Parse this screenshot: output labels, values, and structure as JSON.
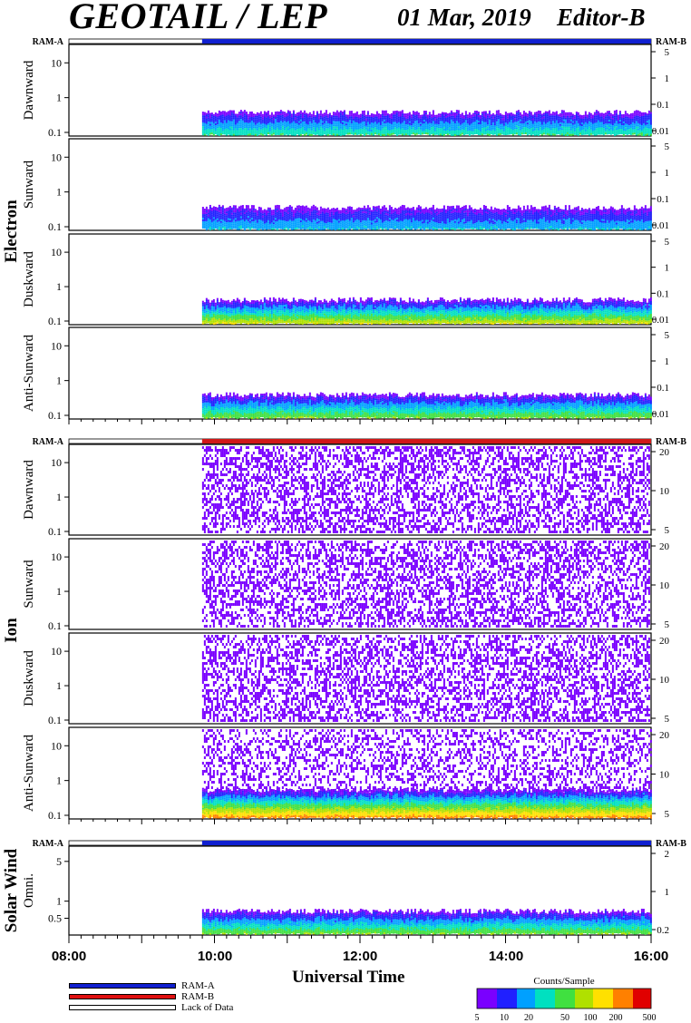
{
  "header": {
    "title": "GEOTAIL / LEP",
    "date": "01 Mar, 2019",
    "editor": "Editor-B"
  },
  "status_labels": {
    "left": "RAM-A",
    "right": "RAM-B"
  },
  "x_axis": {
    "title": "Universal Time",
    "ticks": [
      "08:00",
      "10:00",
      "12:00",
      "14:00",
      "16:00"
    ],
    "range_hours": [
      8,
      16
    ]
  },
  "legend": {
    "ram_a": {
      "label": "RAM-A",
      "color": "#1020d0"
    },
    "ram_b": {
      "label": "RAM-B",
      "color": "#e01010"
    },
    "lack": {
      "label": "Lack of Data",
      "color": "#ffffff"
    }
  },
  "colorbar": {
    "title": "Counts/Sample",
    "ticks": [
      "5",
      "10",
      "20",
      "50",
      "100",
      "200",
      "500"
    ]
  },
  "chart_data": [
    {
      "type": "heatmap",
      "group": "Electron",
      "status_color": "#1020d0",
      "data_start_hour": 9.83,
      "panels": [
        {
          "label": "Dawnward",
          "yticks_left": [
            "10",
            "1",
            "0.1"
          ],
          "yticks_right": [
            "5",
            "1",
            "0.1",
            "0.01"
          ],
          "base_level": 0.35,
          "top_level": 0.45
        },
        {
          "label": "Sunward",
          "yticks_left": [
            "10",
            "1",
            "0.1"
          ],
          "yticks_right": [
            "5",
            "1",
            "0.1",
            "0.01"
          ],
          "base_level": 0.25,
          "top_level": 0.4
        },
        {
          "label": "Duskward",
          "yticks_left": [
            "10",
            "1",
            "0.1"
          ],
          "yticks_right": [
            "5",
            "1",
            "0.1",
            "0.01"
          ],
          "base_level": 0.55,
          "top_level": 0.55
        },
        {
          "label": "Anti-Sunward",
          "yticks_left": [
            "10",
            "1",
            "0.1"
          ],
          "yticks_right": [
            "5",
            "1",
            "0.1",
            "0.01"
          ],
          "base_level": 0.45,
          "top_level": 0.5
        }
      ]
    },
    {
      "type": "heatmap",
      "group": "Ion",
      "status_color": "#d01818",
      "data_start_hour": 9.83,
      "panels": [
        {
          "label": "Dawnward",
          "yticks_left": [
            "10",
            "1",
            "0.1"
          ],
          "yticks_right": [
            "20",
            "10",
            "5"
          ],
          "base_level": 0.05,
          "top_level": 0.05
        },
        {
          "label": "Sunward",
          "yticks_left": [
            "10",
            "1",
            "0.1"
          ],
          "yticks_right": [
            "20",
            "10",
            "5"
          ],
          "base_level": 0.05,
          "top_level": 0.05
        },
        {
          "label": "Duskward",
          "yticks_left": [
            "10",
            "1",
            "0.1"
          ],
          "yticks_right": [
            "20",
            "10",
            "5"
          ],
          "base_level": 0.05,
          "top_level": 0.05
        },
        {
          "label": "Anti-Sunward",
          "yticks_left": [
            "10",
            "1",
            "0.1"
          ],
          "yticks_right": [
            "20",
            "10",
            "5"
          ],
          "base_level": 0.7,
          "top_level": 0.85
        }
      ]
    },
    {
      "type": "heatmap",
      "group": "Solar Wind",
      "status_color": "#1020d0",
      "data_start_hour": 9.83,
      "panels": [
        {
          "label": "Omni.",
          "yticks_left": [
            "5",
            "1",
            "0.5"
          ],
          "yticks_right": [
            "2",
            "1",
            "0.2"
          ],
          "base_level": 0.45,
          "top_level": 0.5
        }
      ]
    }
  ]
}
